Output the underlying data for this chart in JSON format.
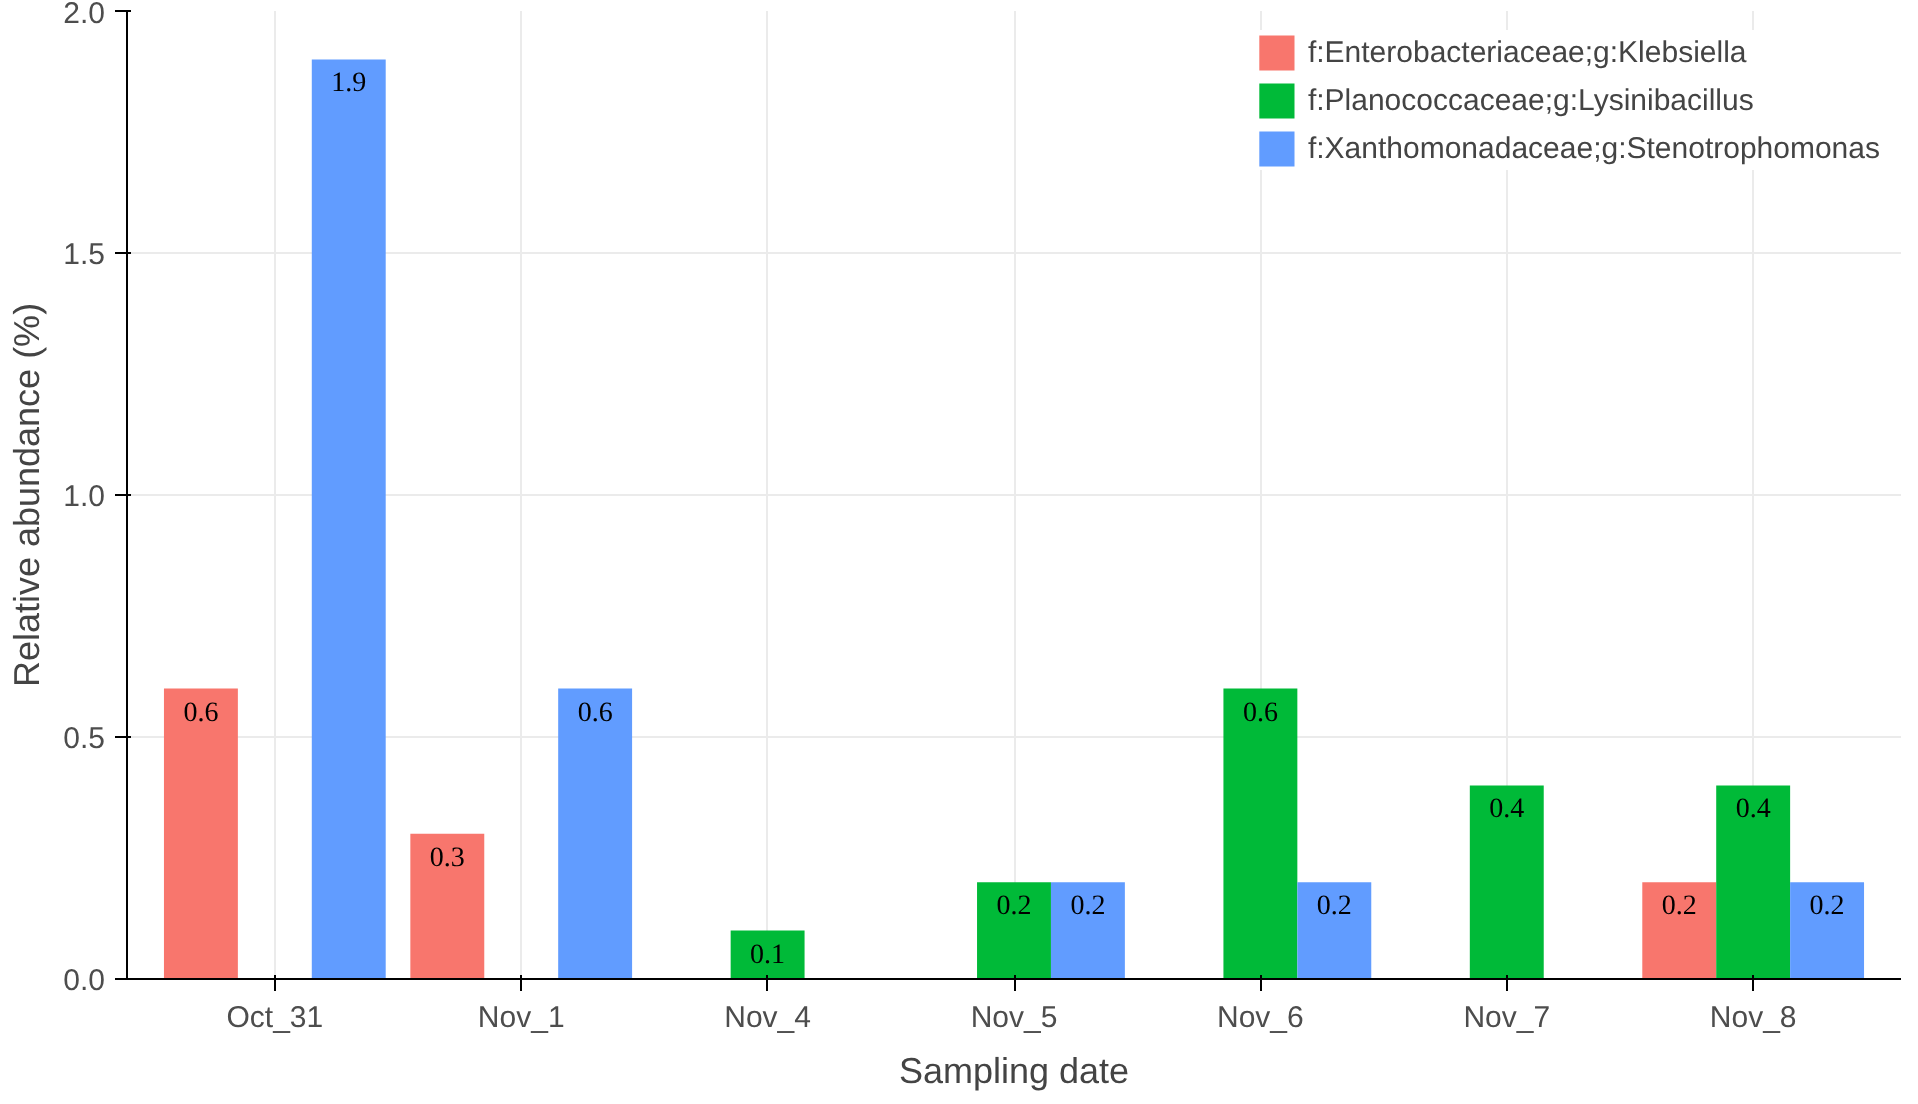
{
  "chart_data": {
    "type": "bar",
    "xlabel": "Sampling date",
    "ylabel": "Relative abundance (%)",
    "categories": [
      "Oct_31",
      "Nov_1",
      "Nov_4",
      "Nov_5",
      "Nov_6",
      "Nov_7",
      "Nov_8"
    ],
    "series": [
      {
        "name": "f:Enterobacteriaceae;g:Klebsiella",
        "color": "#f8766d",
        "values": [
          0.6,
          0.3,
          null,
          null,
          null,
          null,
          0.2
        ]
      },
      {
        "name": "f:Planococcaceae;g:Lysinibacillus",
        "color": "#00ba38",
        "values": [
          null,
          null,
          0.1,
          0.2,
          0.6,
          0.4,
          0.4
        ]
      },
      {
        "name": "f:Xanthomonadaceae;g:Stenotrophomonas",
        "color": "#619cff",
        "values": [
          1.9,
          0.6,
          null,
          0.2,
          0.2,
          null,
          0.2
        ]
      }
    ],
    "ylim": [
      0,
      2.0
    ],
    "yticks": [
      {
        "value": 0,
        "label": "0.0"
      },
      {
        "value": 0.5,
        "label": "0.5"
      },
      {
        "value": 1.0,
        "label": "1.0"
      },
      {
        "value": 1.5,
        "label": "1.5"
      },
      {
        "value": 2.0,
        "label": "2.0"
      }
    ],
    "grid": true,
    "legend": "top right",
    "data_labels": true
  }
}
